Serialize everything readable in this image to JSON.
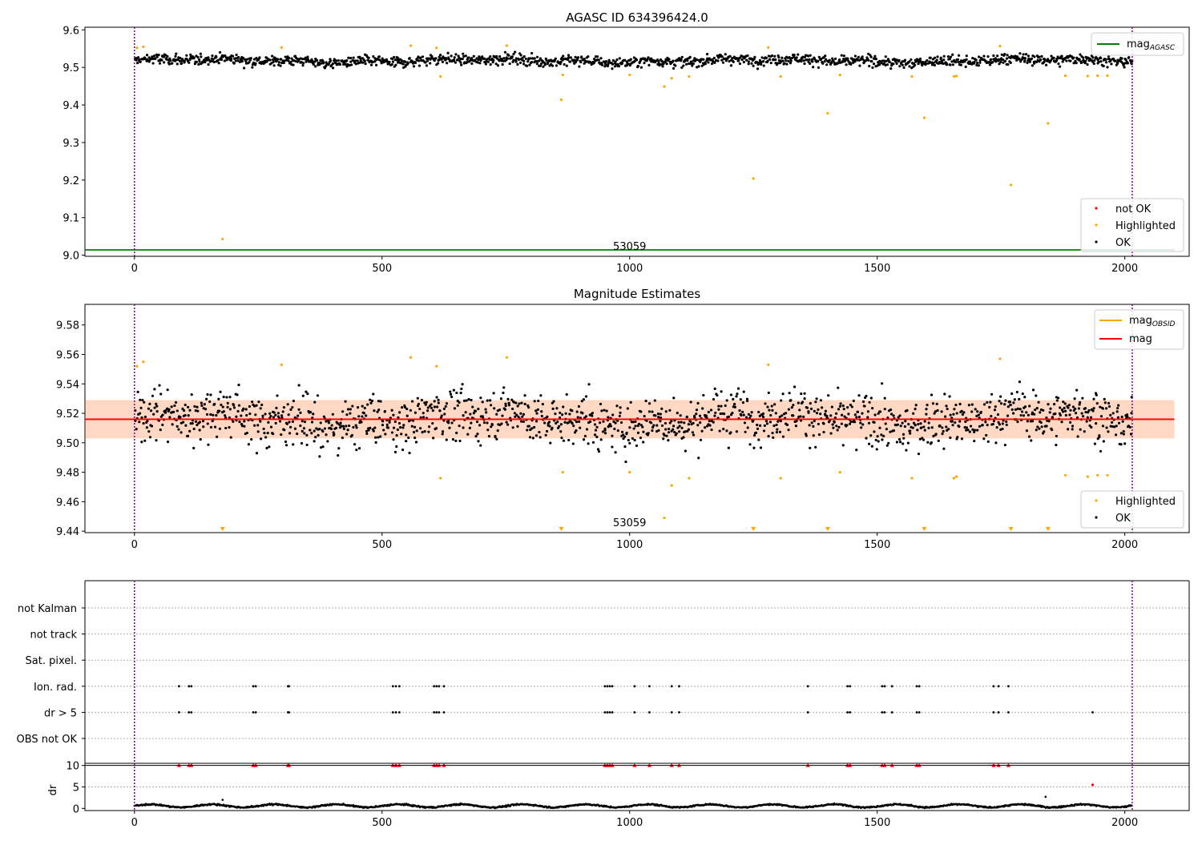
{
  "chart_data": [
    {
      "type": "scatter",
      "title": "AGASC ID 634396424.0",
      "xlabel": "",
      "ylabel": "",
      "xlim": [
        -100,
        2130
      ],
      "ylim": [
        8.997,
        9.607
      ],
      "xticks": [
        0,
        500,
        1000,
        1500,
        2000
      ],
      "xtick_labels": [
        "0",
        "500",
        "1000",
        "1500",
        "2000"
      ],
      "yticks": [
        9.0,
        9.1,
        9.2,
        9.3,
        9.4,
        9.5,
        9.6
      ],
      "ytick_labels": [
        "9.0",
        "9.1",
        "9.2",
        "9.3",
        "9.4",
        "9.5",
        "9.6"
      ],
      "grid": false,
      "vlines": [
        0,
        2015
      ],
      "vline_label": "53059",
      "mag_agasc": 9.014,
      "ok_band": {
        "x_range": [
          0,
          2015
        ],
        "center": 9.518,
        "spread": 0.013
      },
      "legend_lines": [
        {
          "name": "mag",
          "subscript": "AGASC",
          "color": "#008000"
        }
      ],
      "legend_points": [
        {
          "name": "not OK",
          "color": "#ff0000"
        },
        {
          "name": "Highlighted",
          "color": "#ffa500"
        },
        {
          "name": "OK",
          "color": "#000000"
        }
      ],
      "legend_placement": [
        "upper right",
        "lower right"
      ],
      "series": [
        {
          "name": "Highlighted",
          "color": "#ffa500",
          "points": [
            [
              5,
              9.552
            ],
            [
              18,
              9.555
            ],
            [
              178,
              9.043
            ],
            [
              297,
              9.553
            ],
            [
              558,
              9.558
            ],
            [
              610,
              9.552
            ],
            [
              618,
              9.476
            ],
            [
              752,
              9.558
            ],
            [
              862,
              9.414
            ],
            [
              865,
              9.48
            ],
            [
              1000,
              9.48
            ],
            [
              1070,
              9.449
            ],
            [
              1085,
              9.471
            ],
            [
              1120,
              9.476
            ],
            [
              1250,
              9.204
            ],
            [
              1280,
              9.553
            ],
            [
              1305,
              9.476
            ],
            [
              1400,
              9.378
            ],
            [
              1425,
              9.48
            ],
            [
              1570,
              9.476
            ],
            [
              1595,
              9.366
            ],
            [
              1655,
              9.476
            ],
            [
              1660,
              9.477
            ],
            [
              1748,
              9.557
            ],
            [
              1770,
              9.187
            ],
            [
              1845,
              9.351
            ],
            [
              1880,
              9.478
            ],
            [
              1925,
              9.477
            ],
            [
              1945,
              9.478
            ],
            [
              1965,
              9.478
            ]
          ]
        }
      ]
    },
    {
      "type": "scatter",
      "title": "Magnitude Estimates",
      "xlabel": "",
      "ylabel": "",
      "xlim": [
        -100,
        2130
      ],
      "ylim": [
        9.439,
        9.594
      ],
      "xticks": [
        0,
        500,
        1000,
        1500,
        2000
      ],
      "xtick_labels": [
        "0",
        "500",
        "1000",
        "1500",
        "2000"
      ],
      "yticks": [
        9.44,
        9.46,
        9.48,
        9.5,
        9.52,
        9.54,
        9.56,
        9.58
      ],
      "ytick_labels": [
        "9.44",
        "9.46",
        "9.48",
        "9.50",
        "9.52",
        "9.54",
        "9.56",
        "9.58"
      ],
      "grid": false,
      "vlines": [
        0,
        2015
      ],
      "vline_label": "53059",
      "mag": 9.516,
      "mag_band": [
        9.503,
        9.529
      ],
      "obsid_band": [
        9.503,
        9.529
      ],
      "ok_band": {
        "x_range": [
          0,
          2015
        ],
        "center": 9.516,
        "spread": 0.013
      },
      "legend_lines": [
        {
          "name": "mag",
          "subscript": "OBSID",
          "color": "#ffa500"
        },
        {
          "name": "mag",
          "subscript": "",
          "color": "#ff0000"
        }
      ],
      "legend_points": [
        {
          "name": "Highlighted",
          "color": "#ffa500"
        },
        {
          "name": "OK",
          "color": "#000000"
        }
      ],
      "legend_placement": [
        "upper right",
        "lower right"
      ],
      "offscale_x": [
        178,
        862,
        1250,
        1400,
        1595,
        1770,
        1845
      ],
      "series": [
        {
          "name": "Highlighted",
          "color": "#ffa500",
          "points": [
            [
              5,
              9.552
            ],
            [
              18,
              9.555
            ],
            [
              297,
              9.553
            ],
            [
              558,
              9.558
            ],
            [
              610,
              9.552
            ],
            [
              618,
              9.476
            ],
            [
              752,
              9.558
            ],
            [
              865,
              9.48
            ],
            [
              1000,
              9.48
            ],
            [
              1070,
              9.449
            ],
            [
              1085,
              9.471
            ],
            [
              1120,
              9.476
            ],
            [
              1280,
              9.553
            ],
            [
              1305,
              9.476
            ],
            [
              1425,
              9.48
            ],
            [
              1570,
              9.476
            ],
            [
              1655,
              9.476
            ],
            [
              1660,
              9.477
            ],
            [
              1748,
              9.557
            ],
            [
              1880,
              9.478
            ],
            [
              1925,
              9.477
            ],
            [
              1945,
              9.478
            ],
            [
              1965,
              9.478
            ]
          ]
        }
      ]
    },
    {
      "type": "scatter",
      "title": "",
      "xlabel": "",
      "ylabel": "",
      "xlim": [
        -100,
        2130
      ],
      "categories": [
        "not Kalman",
        "not track",
        "Sat. pixel.",
        "Ion. rad.",
        "dr > 5",
        "OBS not OK"
      ],
      "grid": true,
      "vlines": [
        0,
        2015
      ],
      "series": [
        {
          "name": "Ion. rad.",
          "color": "#000000",
          "x": [
            90,
            110,
            115,
            240,
            245,
            310,
            312,
            522,
            528,
            535,
            605,
            610,
            615,
            625,
            950,
            955,
            960,
            965,
            1010,
            1040,
            1085,
            1100,
            1360,
            1440,
            1445,
            1510,
            1515,
            1530,
            1580,
            1585,
            1735,
            1745,
            1765
          ]
        },
        {
          "name": "dr > 5",
          "color": "#000000",
          "x": [
            90,
            110,
            115,
            240,
            245,
            310,
            312,
            522,
            528,
            535,
            605,
            610,
            615,
            625,
            950,
            955,
            960,
            965,
            1010,
            1040,
            1085,
            1100,
            1360,
            1440,
            1445,
            1510,
            1515,
            1530,
            1580,
            1585,
            1735,
            1745,
            1765,
            1935
          ]
        }
      ]
    },
    {
      "type": "scatter",
      "title": "",
      "xlabel": "",
      "ylabel": "dr",
      "xlim": [
        -100,
        2130
      ],
      "ylim": [
        -0.5,
        10.5
      ],
      "xticks": [
        0,
        500,
        1000,
        1500,
        2000
      ],
      "xtick_labels": [
        "0",
        "500",
        "1000",
        "1500",
        "2000"
      ],
      "yticks": [
        0,
        5,
        10
      ],
      "ytick_labels": [
        "0",
        "5",
        "10"
      ],
      "grid": true,
      "vlines": [
        0,
        2015
      ],
      "hline": 10,
      "clipped_x": [
        90,
        110,
        115,
        240,
        245,
        310,
        312,
        522,
        528,
        535,
        605,
        610,
        615,
        625,
        950,
        955,
        960,
        965,
        1010,
        1040,
        1085,
        1100,
        1360,
        1440,
        1445,
        1510,
        1515,
        1530,
        1580,
        1585,
        1735,
        1745,
        1765
      ],
      "series": [
        {
          "name": "dr",
          "color": "#000000",
          "baseline": 0.6,
          "outliers": [
            [
              178,
              2.0
            ],
            [
              1840,
              2.7
            ]
          ]
        },
        {
          "name": "dr > 5",
          "color": "#ff0000",
          "points": [
            [
              1935,
              5.5
            ]
          ]
        }
      ]
    }
  ]
}
